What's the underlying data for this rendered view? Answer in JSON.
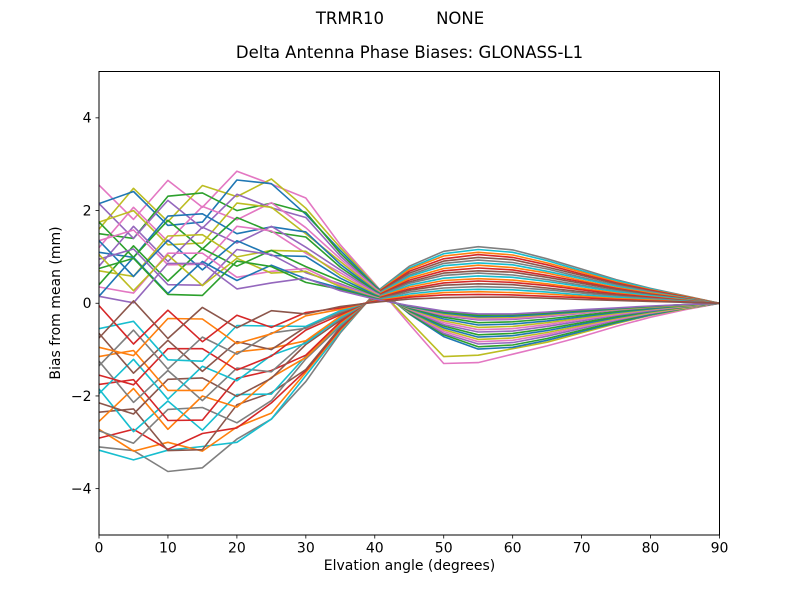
{
  "figure": {
    "suptitle_left": "TRMR10",
    "suptitle_right": "NONE"
  },
  "chart_data": {
    "type": "line",
    "title": "Delta Antenna Phase Biases: GLONASS-L1",
    "xlabel": "Elvation angle (degrees)",
    "ylabel": "Bias from mean (mm)",
    "xlim": [
      0,
      90
    ],
    "ylim": [
      -5,
      5
    ],
    "grid": false,
    "legend": "none",
    "xticks": {
      "values": [
        0,
        10,
        20,
        30,
        40,
        50,
        60,
        70,
        80,
        90
      ],
      "labels": [
        "0",
        "10",
        "20",
        "30",
        "40",
        "50",
        "60",
        "70",
        "80",
        "90"
      ]
    },
    "yticks": {
      "values": [
        -4,
        -2,
        0,
        2,
        4
      ],
      "labels": [
        "−4",
        "−2",
        "0",
        "2",
        "4"
      ]
    },
    "x": [
      0,
      5,
      10,
      15,
      20,
      25,
      30,
      35,
      40,
      45,
      50,
      55,
      60,
      65,
      70,
      75,
      80,
      85,
      90
    ],
    "series": [
      {
        "color": "#e377c2",
        "y": [
          2.55,
          1.81,
          2.65,
          2.07,
          2.85,
          2.57,
          2.27,
          1.26,
          0.42,
          -0.45,
          -1.3,
          -1.28,
          -1.1,
          -0.92,
          -0.72,
          -0.5,
          -0.3,
          -0.14,
          0
        ]
      },
      {
        "color": "#7f7f7f",
        "y": [
          -3.1,
          -3.18,
          -3.63,
          -3.55,
          -2.93,
          -2.5,
          -1.69,
          -0.64,
          0.22,
          0.8,
          1.12,
          1.22,
          1.15,
          0.96,
          0.74,
          0.51,
          0.32,
          0.16,
          0
        ]
      },
      {
        "color": "#bcbd22",
        "y": [
          1.6,
          2.48,
          1.76,
          2.54,
          2.3,
          2.68,
          2.05,
          1.2,
          0.4,
          -0.38,
          -1.15,
          -1.12,
          -0.98,
          -0.84,
          -0.64,
          -0.44,
          -0.26,
          -0.12,
          0
        ]
      },
      {
        "color": "#17becf",
        "y": [
          -3.17,
          -3.38,
          -3.17,
          -3.09,
          -3.0,
          -2.5,
          -1.56,
          -0.61,
          0.21,
          0.76,
          1.07,
          1.16,
          1.1,
          0.92,
          0.7,
          0.49,
          0.31,
          0.15,
          0
        ]
      },
      {
        "color": "#1f77b4",
        "y": [
          2.15,
          2.41,
          1.68,
          1.75,
          2.66,
          2.58,
          1.92,
          1.14,
          0.38,
          -0.23,
          -0.72,
          -0.99,
          -0.95,
          -0.8,
          -0.61,
          -0.42,
          -0.25,
          -0.11,
          0
        ]
      },
      {
        "color": "#ff7f0e",
        "y": [
          -2.72,
          -3.19,
          -3.0,
          -3.19,
          -2.67,
          -2.37,
          -1.49,
          -0.58,
          0.2,
          0.73,
          1.02,
          1.1,
          1.04,
          0.87,
          0.67,
          0.46,
          0.29,
          0.15,
          0
        ]
      },
      {
        "color": "#2ca02c",
        "y": [
          1.5,
          1.4,
          2.31,
          2.38,
          2.0,
          2.16,
          1.96,
          1.08,
          0.36,
          -0.22,
          -0.68,
          -0.94,
          -0.9,
          -0.76,
          -0.58,
          -0.4,
          -0.23,
          -0.11,
          0
        ]
      },
      {
        "color": "#d62728",
        "y": [
          -2.91,
          -2.72,
          -3.15,
          -2.81,
          -2.69,
          -2.15,
          -1.45,
          -0.55,
          0.19,
          0.69,
          0.96,
          1.05,
          0.99,
          0.83,
          0.63,
          0.44,
          0.28,
          0.14,
          0
        ]
      },
      {
        "color": "#9467bd",
        "y": [
          2.15,
          1.4,
          2.22,
          1.62,
          2.35,
          2.06,
          1.85,
          1.02,
          0.34,
          -0.2,
          -0.65,
          -0.88,
          -0.85,
          -0.71,
          -0.54,
          -0.37,
          -0.22,
          -0.1,
          0
        ]
      },
      {
        "color": "#8c564b",
        "y": [
          -2.35,
          -2.28,
          -3.18,
          -3.16,
          -2.19,
          -1.93,
          -1.43,
          -0.52,
          0.18,
          0.65,
          0.91,
          0.99,
          0.94,
          0.78,
          0.6,
          0.42,
          0.26,
          0.13,
          0
        ]
      },
      {
        "color": "#e377c2",
        "y": [
          1.2,
          2.07,
          1.33,
          2.09,
          1.8,
          2.17,
          1.63,
          0.96,
          0.32,
          -0.19,
          -0.61,
          -0.83,
          -0.8,
          -0.67,
          -0.51,
          -0.35,
          -0.21,
          -0.1,
          0
        ]
      },
      {
        "color": "#7f7f7f",
        "y": [
          -2.75,
          -3.02,
          -2.29,
          -2.25,
          -2.58,
          -2.1,
          -1.2,
          -0.49,
          0.17,
          0.61,
          0.86,
          0.93,
          0.88,
          0.74,
          0.56,
          0.39,
          0.25,
          0.12,
          0
        ]
      },
      {
        "color": "#bcbd22",
        "y": [
          1.75,
          2.0,
          1.26,
          1.3,
          2.16,
          2.07,
          1.5,
          0.9,
          0.3,
          -0.18,
          -0.57,
          -0.78,
          -0.75,
          -0.63,
          -0.48,
          -0.33,
          -0.2,
          -0.09,
          0
        ]
      },
      {
        "color": "#17becf",
        "y": [
          -1.85,
          -2.77,
          -2.11,
          -2.74,
          -1.97,
          -1.96,
          -1.14,
          -0.46,
          0.16,
          0.58,
          0.81,
          0.87,
          0.83,
          0.69,
          0.53,
          0.37,
          0.23,
          0.12,
          0
        ]
      },
      {
        "color": "#1f77b4",
        "y": [
          1.1,
          0.99,
          1.88,
          1.93,
          1.5,
          1.65,
          1.54,
          0.84,
          0.28,
          -0.17,
          -0.53,
          -0.73,
          -0.7,
          -0.59,
          -0.45,
          -0.31,
          -0.18,
          -0.08,
          0
        ]
      },
      {
        "color": "#ff7f0e",
        "y": [
          -2.55,
          -1.84,
          -2.72,
          -2.0,
          -2.24,
          -1.6,
          -1.17,
          -0.43,
          0.15,
          0.54,
          0.75,
          0.82,
          0.77,
          0.65,
          0.49,
          0.34,
          0.22,
          0.11,
          0
        ]
      },
      {
        "color": "#2ca02c",
        "y": [
          1.75,
          0.99,
          1.79,
          1.17,
          1.85,
          1.54,
          1.43,
          0.78,
          0.26,
          -0.16,
          -0.49,
          -0.68,
          -0.65,
          -0.55,
          -0.42,
          -0.29,
          -0.17,
          -0.08,
          0
        ]
      },
      {
        "color": "#d62728",
        "y": [
          -1.75,
          -1.65,
          -2.53,
          -2.52,
          -1.62,
          -1.45,
          -1.12,
          -0.4,
          0.14,
          0.5,
          0.7,
          0.76,
          0.72,
          0.6,
          0.46,
          0.32,
          0.2,
          0.1,
          0
        ]
      },
      {
        "color": "#9467bd",
        "y": [
          0.8,
          1.66,
          0.9,
          1.64,
          1.3,
          1.66,
          1.21,
          0.72,
          0.24,
          -0.14,
          -0.46,
          -0.62,
          -0.6,
          -0.5,
          -0.38,
          -0.26,
          -0.16,
          -0.07,
          0
        ]
      },
      {
        "color": "#8c564b",
        "y": [
          -2.15,
          -2.39,
          -1.64,
          -1.61,
          -2.01,
          -1.62,
          -0.89,
          -0.37,
          0.13,
          0.46,
          0.65,
          0.7,
          0.67,
          0.56,
          0.43,
          0.3,
          0.19,
          0.09,
          0
        ]
      },
      {
        "color": "#e377c2",
        "y": [
          1.35,
          1.58,
          0.83,
          0.84,
          1.66,
          1.56,
          1.08,
          0.66,
          0.22,
          -0.13,
          -0.42,
          -0.57,
          -0.55,
          -0.46,
          -0.35,
          -0.24,
          -0.14,
          -0.07,
          0
        ]
      },
      {
        "color": "#7f7f7f",
        "y": [
          -1.25,
          -2.14,
          -1.45,
          -2.1,
          -1.4,
          -1.48,
          -0.82,
          -0.34,
          0.12,
          0.43,
          0.6,
          0.65,
          0.61,
          0.51,
          0.39,
          0.27,
          0.17,
          0.09,
          0
        ]
      },
      {
        "color": "#bcbd22",
        "y": [
          0.7,
          0.58,
          1.45,
          1.48,
          1.0,
          1.14,
          1.12,
          0.6,
          0.2,
          -0.12,
          -0.38,
          -0.52,
          -0.5,
          -0.42,
          -0.32,
          -0.22,
          -0.13,
          -0.06,
          0
        ]
      },
      {
        "color": "#17becf",
        "y": [
          -1.95,
          -1.21,
          -2.07,
          -1.36,
          -1.67,
          -1.12,
          -0.86,
          -0.31,
          0.11,
          0.39,
          0.54,
          0.59,
          0.56,
          0.47,
          0.36,
          0.25,
          0.16,
          0.08,
          0
        ]
      },
      {
        "color": "#1f77b4",
        "y": [
          1.35,
          0.58,
          1.36,
          0.72,
          1.35,
          1.03,
          1.01,
          0.54,
          0.18,
          -0.11,
          -0.34,
          -0.47,
          -0.45,
          -0.38,
          -0.29,
          -0.2,
          -0.12,
          -0.05,
          0
        ]
      },
      {
        "color": "#ff7f0e",
        "y": [
          -1.15,
          -1.02,
          -1.88,
          -1.88,
          -1.05,
          -0.97,
          -0.81,
          -0.28,
          0.1,
          0.35,
          0.49,
          0.53,
          0.5,
          0.42,
          0.32,
          0.22,
          0.14,
          0.07,
          0
        ]
      },
      {
        "color": "#2ca02c",
        "y": [
          0.4,
          1.24,
          0.48,
          1.18,
          0.8,
          1.14,
          0.79,
          0.48,
          0.16,
          -0.1,
          -0.3,
          -0.42,
          -0.4,
          -0.34,
          -0.26,
          -0.18,
          -0.1,
          -0.05,
          0
        ]
      },
      {
        "color": "#d62728",
        "y": [
          -1.55,
          -1.76,
          -0.98,
          -0.98,
          -1.44,
          -1.14,
          -0.58,
          -0.25,
          0.09,
          0.31,
          0.44,
          0.48,
          0.45,
          0.38,
          0.29,
          0.2,
          0.13,
          0.06,
          0
        ]
      },
      {
        "color": "#9467bd",
        "y": [
          0.95,
          1.17,
          0.4,
          0.39,
          1.16,
          1.05,
          0.66,
          0.42,
          0.14,
          -0.08,
          -0.27,
          -0.36,
          -0.35,
          -0.29,
          -0.22,
          -0.15,
          -0.09,
          -0.04,
          0
        ]
      },
      {
        "color": "#8c564b",
        "y": [
          -0.65,
          -1.51,
          -0.8,
          -1.47,
          -0.83,
          -1.0,
          -0.51,
          -0.22,
          0.08,
          0.28,
          0.39,
          0.42,
          0.4,
          0.33,
          0.25,
          0.18,
          0.11,
          0.06,
          0
        ]
      },
      {
        "color": "#e377c2",
        "y": [
          0.35,
          0.22,
          1.08,
          1.08,
          0.56,
          0.69,
          0.75,
          0.39,
          0.13,
          -0.08,
          -0.25,
          -0.34,
          -0.33,
          -0.27,
          -0.21,
          -0.14,
          -0.08,
          -0.04,
          0
        ]
      },
      {
        "color": "#7f7f7f",
        "y": [
          -1.35,
          -0.58,
          -1.42,
          -0.73,
          -1.1,
          -0.64,
          -0.54,
          -0.19,
          0.07,
          0.24,
          0.33,
          0.36,
          0.34,
          0.29,
          0.22,
          0.15,
          0.1,
          0.05,
          0
        ]
      },
      {
        "color": "#bcbd22",
        "y": [
          1.05,
          0.27,
          1.04,
          0.38,
          0.97,
          0.65,
          0.69,
          0.36,
          0.12,
          -0.07,
          -0.23,
          -0.31,
          -0.3,
          -0.25,
          -0.19,
          -0.13,
          -0.08,
          -0.04,
          0
        ]
      },
      {
        "color": "#17becf",
        "y": [
          -0.55,
          -0.39,
          -1.22,
          -1.25,
          -0.48,
          -0.49,
          -0.5,
          -0.16,
          0.06,
          0.2,
          0.28,
          0.3,
          0.29,
          0.24,
          0.18,
          0.13,
          0.08,
          0.04,
          0
        ]
      },
      {
        "color": "#1f77b4",
        "y": [
          0.15,
          0.99,
          0.21,
          0.9,
          0.49,
          0.82,
          0.53,
          0.33,
          0.11,
          -0.07,
          -0.21,
          -0.29,
          -0.28,
          -0.23,
          -0.18,
          -0.12,
          -0.07,
          -0.03,
          0
        ]
      },
      {
        "color": "#ff7f0e",
        "y": [
          -0.95,
          -1.13,
          -0.33,
          -0.34,
          -0.87,
          -0.66,
          -0.27,
          -0.13,
          0.05,
          0.16,
          0.23,
          0.25,
          0.23,
          0.2,
          0.15,
          0.1,
          0.07,
          0.03,
          0
        ]
      },
      {
        "color": "#2ca02c",
        "y": [
          0.75,
          0.97,
          0.19,
          0.17,
          0.91,
          0.79,
          0.45,
          0.3,
          0.1,
          -0.06,
          -0.19,
          -0.26,
          -0.25,
          -0.21,
          -0.16,
          -0.11,
          -0.07,
          -0.03,
          0
        ]
      },
      {
        "color": "#d62728",
        "y": [
          -0.05,
          -0.88,
          -0.15,
          -0.83,
          -0.26,
          -0.52,
          -0.2,
          -0.1,
          0.04,
          0.13,
          0.18,
          0.19,
          0.18,
          0.15,
          0.12,
          0.08,
          0.05,
          0.03,
          0
        ]
      },
      {
        "color": "#9467bd",
        "y": [
          0.15,
          0.01,
          0.86,
          0.86,
          0.31,
          0.44,
          0.54,
          0.27,
          0.09,
          -0.05,
          -0.17,
          -0.23,
          -0.23,
          -0.19,
          -0.14,
          -0.1,
          -0.06,
          -0.03,
          0
        ]
      },
      {
        "color": "#8c564b",
        "y": [
          -0.75,
          0.05,
          -0.76,
          -0.09,
          -0.53,
          -0.16,
          -0.23,
          -0.07,
          0.02,
          0.09,
          0.12,
          0.13,
          0.13,
          0.11,
          0.08,
          0.06,
          0.04,
          0.02,
          0
        ]
      }
    ]
  }
}
